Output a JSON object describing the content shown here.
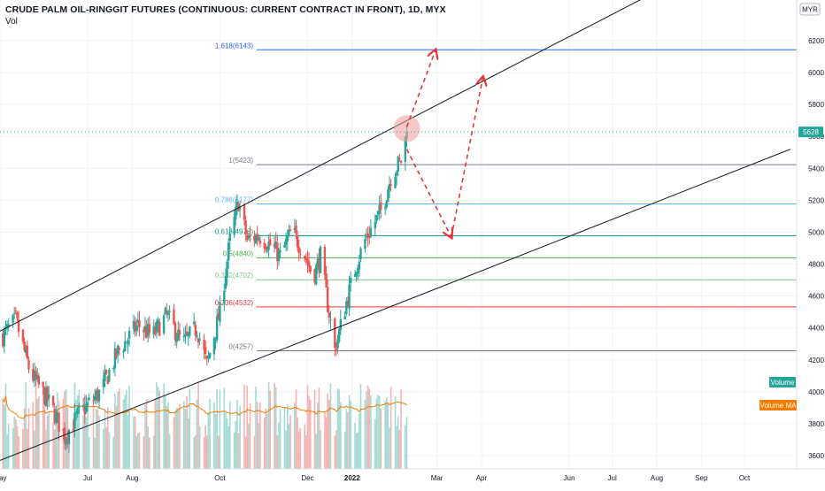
{
  "header": {
    "title": "CRUDE PALM OIL-RINGGIT FUTURES (CONTINUOUS: CURRENT CONTRACT IN FRONT), 1D, MYX",
    "indicator": "Vol"
  },
  "currency_badge": "MYR",
  "chart_data": {
    "type": "candlestick",
    "title": "CRUDE PALM OIL-RINGGIT FUTURES (CONTINUOUS: CURRENT CONTRACT IN FRONT), 1D, MYX",
    "ylim": [
      3520,
      6320
    ],
    "y_ticks": [
      3600,
      3800,
      4000,
      4200,
      4400,
      4600,
      4800,
      5000,
      5200,
      5400,
      5600,
      5800,
      6000,
      6200
    ],
    "x_range": [
      "2021-05-01",
      "2022-11-02"
    ],
    "x_ticks": [
      {
        "date": "2021-05-01",
        "label": "May",
        "bold": false
      },
      {
        "date": "2021-07-01",
        "label": "Jul",
        "bold": false
      },
      {
        "date": "2021-08-01",
        "label": "Aug",
        "bold": false
      },
      {
        "date": "2021-10-01",
        "label": "Oct",
        "bold": false
      },
      {
        "date": "2021-12-01",
        "label": "Dec",
        "bold": false
      },
      {
        "date": "2022-01-01",
        "label": "2022",
        "bold": true
      },
      {
        "date": "2022-03-01",
        "label": "Mar",
        "bold": false
      },
      {
        "date": "2022-04-01",
        "label": "Apr",
        "bold": false
      },
      {
        "date": "2022-06-01",
        "label": "Jun",
        "bold": false
      },
      {
        "date": "2022-07-01",
        "label": "Jul",
        "bold": false
      },
      {
        "date": "2022-08-01",
        "label": "Aug",
        "bold": false
      },
      {
        "date": "2022-09-01",
        "label": "Sep",
        "bold": false
      },
      {
        "date": "2022-10-01",
        "label": "Oct",
        "bold": false
      }
    ],
    "last_price": 5628,
    "price_path": [
      [
        "2021-05-03",
        4350
      ],
      [
        "2021-05-12",
        4450
      ],
      [
        "2021-05-22",
        4120
      ],
      [
        "2021-06-05",
        3920
      ],
      [
        "2021-06-15",
        3720
      ],
      [
        "2021-06-25",
        3860
      ],
      [
        "2021-07-10",
        4000
      ],
      [
        "2021-07-22",
        4250
      ],
      [
        "2021-08-05",
        4420
      ],
      [
        "2021-08-15",
        4350
      ],
      [
        "2021-08-25",
        4480
      ],
      [
        "2021-09-05",
        4300
      ],
      [
        "2021-09-15",
        4400
      ],
      [
        "2021-09-22",
        4170
      ],
      [
        "2021-10-01",
        4500
      ],
      [
        "2021-10-08",
        4950
      ],
      [
        "2021-10-14",
        5190
      ],
      [
        "2021-10-20",
        4950
      ],
      [
        "2021-10-28",
        4980
      ],
      [
        "2021-11-05",
        4920
      ],
      [
        "2021-11-12",
        4850
      ],
      [
        "2021-11-20",
        5010
      ],
      [
        "2021-11-28",
        4880
      ],
      [
        "2021-12-05",
        4720
      ],
      [
        "2021-12-10",
        4850
      ],
      [
        "2021-12-15",
        4550
      ],
      [
        "2021-12-20",
        4260
      ],
      [
        "2021-12-28",
        4560
      ],
      [
        "2022-01-04",
        4800
      ],
      [
        "2022-01-10",
        4950
      ],
      [
        "2022-01-16",
        5050
      ],
      [
        "2022-01-22",
        5150
      ],
      [
        "2022-01-28",
        5350
      ],
      [
        "2022-02-04",
        5450
      ],
      [
        "2022-02-08",
        5628
      ]
    ],
    "fibonacci": [
      {
        "ratio": "1.618",
        "value": 6143,
        "label": "1.618(6143)",
        "color": "#2962ff"
      },
      {
        "ratio": "1",
        "value": 5423,
        "label": "1(5423)",
        "color": "#787b86"
      },
      {
        "ratio": "0.786",
        "value": 5177,
        "label": "0.786(5177)",
        "color": "#64b5f6"
      },
      {
        "ratio": "0.618",
        "value": 4978,
        "label": "0.618(4978)",
        "color": "#089981"
      },
      {
        "ratio": "0.5",
        "value": 4840,
        "label": "0.5(4840)",
        "color": "#4caf50"
      },
      {
        "ratio": "0.382",
        "value": 4702,
        "label": "0.382(4702)",
        "color": "#81c784"
      },
      {
        "ratio": "0.236",
        "value": 4532,
        "label": "0.236(4532)",
        "color": "#f23645"
      },
      {
        "ratio": "0",
        "value": 4257,
        "label": "0(4257)",
        "color": "#787b86"
      }
    ],
    "channel_lines": [
      {
        "name": "upper",
        "from": [
          "2021-05-01",
          4380
        ],
        "to": [
          "2022-10-28",
          6920
        ]
      },
      {
        "name": "lower",
        "from": [
          "2021-05-01",
          3570
        ],
        "to": [
          "2022-11-02",
          5520
        ]
      }
    ],
    "projection_arrows": [
      {
        "from": [
          "2022-02-08",
          5660
        ],
        "to": [
          "2022-02-28",
          6140
        ]
      },
      {
        "from": [
          "2022-02-08",
          5520
        ],
        "to": [
          "2022-03-11",
          4970
        ]
      },
      {
        "from": [
          "2022-03-11",
          4970
        ],
        "to": [
          "2022-04-02",
          5970
        ]
      }
    ],
    "highlight_point": [
      "2022-02-08",
      5650
    ],
    "legend": [
      "Volume",
      "Volume MA"
    ]
  },
  "colors": {
    "up": "#26a69a",
    "down": "#ef5350",
    "vol_up": "#a5dbd4",
    "vol_down": "#f5b3b2",
    "vol_ma": "#f57c00",
    "last_price_badge": "#26a69a",
    "arrow": "#e53935",
    "channel": "#131722",
    "grid": "#f0f3fa"
  }
}
